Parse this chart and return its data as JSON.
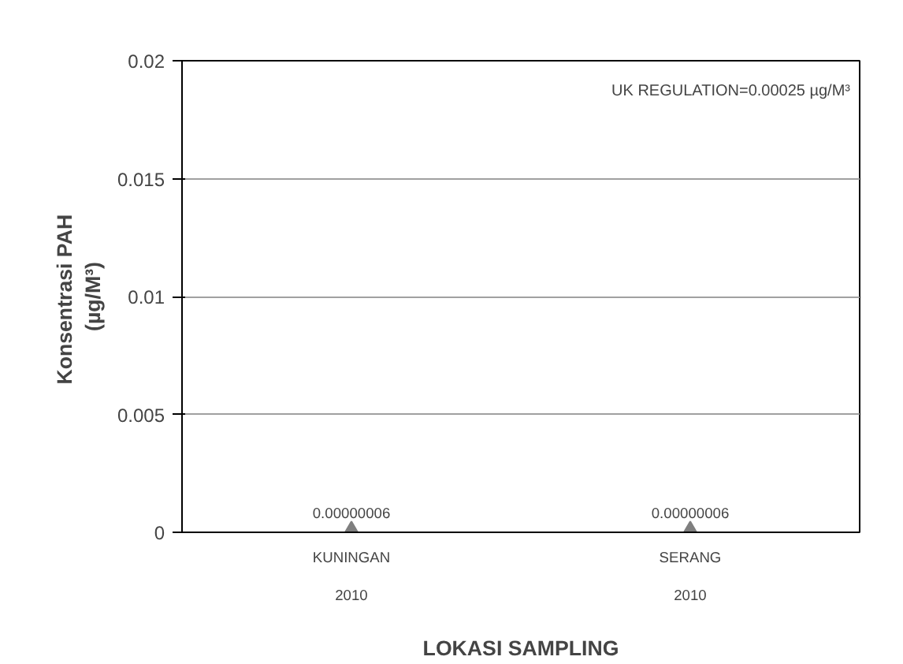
{
  "chart_data": {
    "type": "scatter",
    "xlabel": "LOKASI SAMPLING",
    "ylabel": "Konsentrasi  PAH\n(µg/M³)",
    "categories": [
      "KUNINGAN\n\n2010",
      "SERANG\n\n2010"
    ],
    "series": [
      {
        "color": "#7f7f7f",
        "values": [
          6e-08,
          6e-08
        ],
        "value_labels": [
          "0.00000006",
          "0.00000006"
        ]
      }
    ],
    "ylim": [
      0,
      0.02
    ],
    "yticks": [
      0,
      0.005,
      0.01,
      0.015,
      0.02
    ],
    "grid": "y",
    "marker": "triangle",
    "annotations": [
      "UK REGULATION=0.00025 µg/M³"
    ]
  }
}
